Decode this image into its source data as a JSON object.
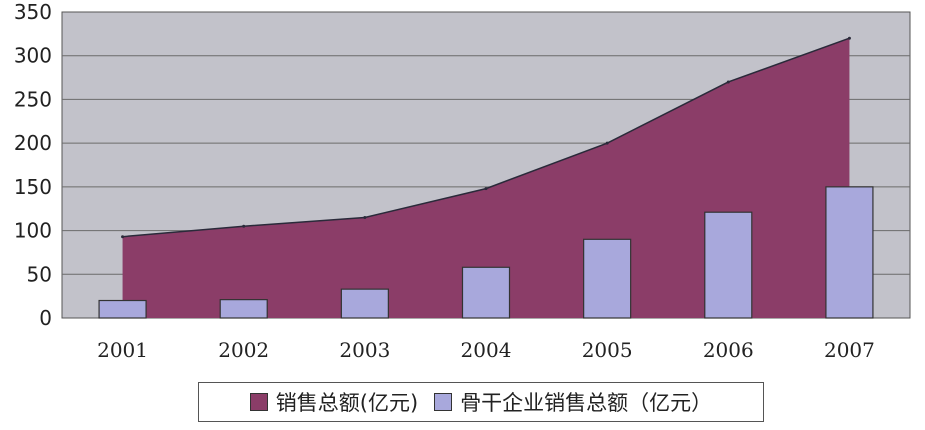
{
  "chart_data": {
    "type": "area",
    "categories": [
      "2001",
      "2002",
      "2003",
      "2004",
      "2005",
      "2006",
      "2007"
    ],
    "ylim": [
      0,
      350
    ],
    "yticks": [
      "0",
      "50",
      "100",
      "150",
      "200",
      "250",
      "300",
      "350"
    ],
    "grid": true,
    "legend_position": "bottom",
    "series": [
      {
        "name": "销售总额(亿元)",
        "type": "area",
        "color": "#8b3d68",
        "values": [
          93,
          105,
          115,
          148,
          200,
          270,
          320
        ]
      },
      {
        "name": "骨干企业销售总额（亿元）",
        "type": "bar",
        "color": "#a8a8dc",
        "values": [
          20,
          21,
          33,
          58,
          90,
          121,
          150
        ]
      }
    ]
  }
}
